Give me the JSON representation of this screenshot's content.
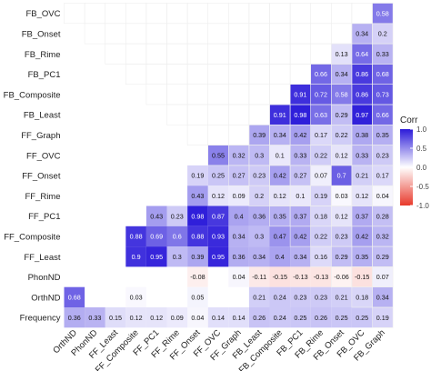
{
  "chart_data": {
    "type": "heatmap",
    "title": "",
    "xlabel": "",
    "ylabel": "",
    "variables": [
      "Frequency",
      "OrthND",
      "PhonND",
      "FF_Least",
      "FF_Composite",
      "FF_PC1",
      "FF_Rime",
      "FF_Onset",
      "FF_OVC",
      "FF_Graph",
      "FB_Least",
      "FB_Composite",
      "FB_PC1",
      "FB_Rime",
      "FB_Onset",
      "FB_OVC"
    ],
    "y_categories": [
      "FB_OVC",
      "FB_Onset",
      "FB_Rime",
      "FB_PC1",
      "FB_Composite",
      "FB_Least",
      "FF_Graph",
      "FF_OVC",
      "FF_Onset",
      "FF_Rime",
      "FF_PC1",
      "FF_Composite",
      "FF_Least",
      "PhonND",
      "OrthND",
      "Frequency"
    ],
    "x_categories": [
      "OrthND",
      "PhonND",
      "FF_Least",
      "FF_Composite",
      "FF_PC1",
      "FF_Rime",
      "FF_Onset",
      "FF_OVC",
      "FF_Graph",
      "FB_Least",
      "FB_Composite",
      "FB_PC1",
      "FB_Rime",
      "FB_Onset",
      "FB_OVC",
      "FB_Graph"
    ],
    "cells": [
      [
        "FB_Graph",
        "FB_OVC",
        "0.58"
      ],
      [
        "FB_Graph",
        "FB_Onset",
        "0.2"
      ],
      [
        "FB_OVC",
        "FB_Onset",
        "0.34"
      ],
      [
        "FB_Graph",
        "FB_Rime",
        "0.33"
      ],
      [
        "FB_OVC",
        "FB_Rime",
        "0.64"
      ],
      [
        "FB_Onset",
        "FB_Rime",
        "0.13"
      ],
      [
        "FB_Graph",
        "FB_PC1",
        "0.68"
      ],
      [
        "FB_OVC",
        "FB_PC1",
        "0.86"
      ],
      [
        "FB_Onset",
        "FB_PC1",
        "0.34"
      ],
      [
        "FB_Rime",
        "FB_PC1",
        "0.66"
      ],
      [
        "FB_Graph",
        "FB_Composite",
        "0.73"
      ],
      [
        "FB_OVC",
        "FB_Composite",
        "0.86"
      ],
      [
        "FB_Onset",
        "FB_Composite",
        "0.58"
      ],
      [
        "FB_Rime",
        "FB_Composite",
        "0.72"
      ],
      [
        "FB_PC1",
        "FB_Composite",
        "0.91"
      ],
      [
        "FB_Graph",
        "FB_Least",
        "0.66"
      ],
      [
        "FB_OVC",
        "FB_Least",
        "0.97"
      ],
      [
        "FB_Onset",
        "FB_Least",
        "0.29"
      ],
      [
        "FB_Rime",
        "FB_Least",
        "0.63"
      ],
      [
        "FB_PC1",
        "FB_Least",
        "0.98"
      ],
      [
        "FB_Composite",
        "FB_Least",
        "0.91"
      ],
      [
        "FB_Graph",
        "FF_Graph",
        "0.35"
      ],
      [
        "FB_OVC",
        "FF_Graph",
        "0.38"
      ],
      [
        "FB_Onset",
        "FF_Graph",
        "0.22"
      ],
      [
        "FB_Rime",
        "FF_Graph",
        "0.17"
      ],
      [
        "FB_PC1",
        "FF_Graph",
        "0.42"
      ],
      [
        "FB_Composite",
        "FF_Graph",
        "0.34"
      ],
      [
        "FB_Least",
        "FF_Graph",
        "0.39"
      ],
      [
        "FB_Graph",
        "FF_OVC",
        "0.23"
      ],
      [
        "FB_OVC",
        "FF_OVC",
        "0.33"
      ],
      [
        "FB_Onset",
        "FF_OVC",
        "0.12"
      ],
      [
        "FB_Rime",
        "FF_OVC",
        "0.22"
      ],
      [
        "FB_PC1",
        "FF_OVC",
        "0.33"
      ],
      [
        "FB_Composite",
        "FF_OVC",
        "0.1"
      ],
      [
        "FB_Least",
        "FF_OVC",
        "0.3"
      ],
      [
        "FF_Graph",
        "FF_OVC",
        "0.32"
      ],
      [
        "FF_OVC",
        "FF_OVC",
        "0.55"
      ],
      [
        "FB_Graph",
        "FF_Onset",
        "0.17"
      ],
      [
        "FB_OVC",
        "FF_Onset",
        "0.21"
      ],
      [
        "FB_Onset",
        "FF_Onset",
        "0.7"
      ],
      [
        "FB_Rime",
        "FF_Onset",
        "0.07"
      ],
      [
        "FB_PC1",
        "FF_Onset",
        "0.27"
      ],
      [
        "FB_Composite",
        "FF_Onset",
        "0.42"
      ],
      [
        "FB_Least",
        "FF_Onset",
        "0.23"
      ],
      [
        "FF_Graph",
        "FF_Onset",
        "0.27"
      ],
      [
        "FF_OVC",
        "FF_Onset",
        "0.25"
      ],
      [
        "FF_Onset",
        "FF_Onset",
        "0.19"
      ],
      [
        "FB_Graph",
        "FF_Rime",
        "0.04"
      ],
      [
        "FB_OVC",
        "FF_Rime",
        "0.12"
      ],
      [
        "FB_Onset",
        "FF_Rime",
        "0.03"
      ],
      [
        "FB_Rime",
        "FF_Rime",
        "0.19"
      ],
      [
        "FB_PC1",
        "FF_Rime",
        "0.1"
      ],
      [
        "FB_Composite",
        "FF_Rime",
        "0.12"
      ],
      [
        "FB_Least",
        "FF_Rime",
        "0.2"
      ],
      [
        "FF_Graph",
        "FF_Rime",
        "0.09"
      ],
      [
        "FF_OVC",
        "FF_Rime",
        "0.12"
      ],
      [
        "FF_Onset",
        "FF_Rime",
        "0.43"
      ],
      [
        "FB_Graph",
        "FF_PC1",
        "0.28"
      ],
      [
        "FB_OVC",
        "FF_PC1",
        "0.37"
      ],
      [
        "FB_Onset",
        "FF_PC1",
        "0.12"
      ],
      [
        "FB_Rime",
        "FF_PC1",
        "0.18"
      ],
      [
        "FB_PC1",
        "FF_PC1",
        "0.37"
      ],
      [
        "FB_Composite",
        "FF_PC1",
        "0.35"
      ],
      [
        "FB_Least",
        "FF_PC1",
        "0.36"
      ],
      [
        "FF_Graph",
        "FF_PC1",
        "0.4"
      ],
      [
        "FF_OVC",
        "FF_PC1",
        "0.87"
      ],
      [
        "FF_Onset",
        "FF_PC1",
        "0.98"
      ],
      [
        "FF_Rime",
        "FF_PC1",
        "0.23"
      ],
      [
        "FF_PC1",
        "FF_PC1",
        "0.43"
      ],
      [
        "FB_Graph",
        "FF_Composite",
        "0.32"
      ],
      [
        "FB_OVC",
        "FF_Composite",
        "0.42"
      ],
      [
        "FB_Onset",
        "FF_Composite",
        "0.23"
      ],
      [
        "FB_Rime",
        "FF_Composite",
        "0.22"
      ],
      [
        "FB_PC1",
        "FF_Composite",
        "0.42"
      ],
      [
        "FB_Composite",
        "FF_Composite",
        "0.47"
      ],
      [
        "FB_Least",
        "FF_Composite",
        "0.3"
      ],
      [
        "FF_Graph",
        "FF_Composite",
        "0.34"
      ],
      [
        "FF_OVC",
        "FF_Composite",
        "0.93"
      ],
      [
        "FF_Onset",
        "FF_Composite",
        "0.88"
      ],
      [
        "FF_Rime",
        "FF_Composite",
        "0.6"
      ],
      [
        "FF_PC1",
        "FF_Composite",
        "0.69"
      ],
      [
        "FF_Composite",
        "FF_Composite",
        "0.88"
      ],
      [
        "FB_Graph",
        "FF_Least",
        "0.29"
      ],
      [
        "FB_OVC",
        "FF_Least",
        "0.35"
      ],
      [
        "FB_Onset",
        "FF_Least",
        "0.29"
      ],
      [
        "FB_Rime",
        "FF_Least",
        "0.16"
      ],
      [
        "FB_PC1",
        "FF_Least",
        "0.34"
      ],
      [
        "FB_Composite",
        "FF_Least",
        "0.4"
      ],
      [
        "FB_Least",
        "FF_Least",
        "0.34"
      ],
      [
        "FF_Graph",
        "FF_Least",
        "0.36"
      ],
      [
        "FF_OVC",
        "FF_Least",
        "0.95"
      ],
      [
        "FF_Onset",
        "FF_Least",
        "0.39"
      ],
      [
        "FF_Rime",
        "FF_Least",
        "0.3"
      ],
      [
        "FF_PC1",
        "FF_Least",
        "0.95"
      ],
      [
        "FF_Composite",
        "FF_Least",
        "0.9"
      ],
      [
        "FB_Graph",
        "PhonND",
        "0.07"
      ],
      [
        "FB_OVC",
        "PhonND",
        "-0.15"
      ],
      [
        "FB_Onset",
        "PhonND",
        "-0.06"
      ],
      [
        "FB_Rime",
        "PhonND",
        "-0.13"
      ],
      [
        "FB_PC1",
        "PhonND",
        "-0.13"
      ],
      [
        "FB_Composite",
        "PhonND",
        "-0.15"
      ],
      [
        "FB_Least",
        "PhonND",
        "-0.11"
      ],
      [
        "FF_Graph",
        "PhonND",
        "0.04"
      ],
      [
        "FF_Onset",
        "PhonND",
        "-0.08"
      ],
      [
        "FB_Graph",
        "OrthND",
        "0.34"
      ],
      [
        "FB_OVC",
        "OrthND",
        "0.18"
      ],
      [
        "FB_Onset",
        "OrthND",
        "0.21"
      ],
      [
        "FB_Rime",
        "OrthND",
        "0.23"
      ],
      [
        "FB_PC1",
        "OrthND",
        "0.23"
      ],
      [
        "FB_Composite",
        "OrthND",
        "0.24"
      ],
      [
        "FB_Least",
        "OrthND",
        "0.21"
      ],
      [
        "FF_Onset",
        "OrthND",
        "0.05"
      ],
      [
        "FF_Composite",
        "OrthND",
        "0.03"
      ],
      [
        "OrthND",
        "OrthND",
        "0.68"
      ],
      [
        "FB_Graph",
        "Frequency",
        "0.19"
      ],
      [
        "FB_OVC",
        "Frequency",
        "0.25"
      ],
      [
        "FB_Onset",
        "Frequency",
        "0.25"
      ],
      [
        "FB_Rime",
        "Frequency",
        "0.26"
      ],
      [
        "FB_PC1",
        "Frequency",
        "0.25"
      ],
      [
        "FB_Composite",
        "Frequency",
        "0.24"
      ],
      [
        "FB_Least",
        "Frequency",
        "0.26"
      ],
      [
        "FF_Graph",
        "Frequency",
        "0.14"
      ],
      [
        "FF_OVC",
        "Frequency",
        "0.14"
      ],
      [
        "FF_Onset",
        "Frequency",
        "0.04"
      ],
      [
        "FF_Rime",
        "Frequency",
        "0.09"
      ],
      [
        "FF_PC1",
        "Frequency",
        "0.12"
      ],
      [
        "FF_Composite",
        "Frequency",
        "0.12"
      ],
      [
        "FF_Least",
        "Frequency",
        "0.15"
      ],
      [
        "PhonND",
        "Frequency",
        "0.33"
      ],
      [
        "OrthND",
        "Frequency",
        "0.36"
      ]
    ],
    "legend": {
      "title": "Corr",
      "ticks": [
        "1.0",
        "0.5",
        "0.0",
        "-0.5",
        "-1.0"
      ],
      "placement": "right",
      "colors": {
        "high": "#2b1ad9",
        "mid": "#ffffff",
        "low": "#e8392b"
      }
    },
    "grid": false
  }
}
